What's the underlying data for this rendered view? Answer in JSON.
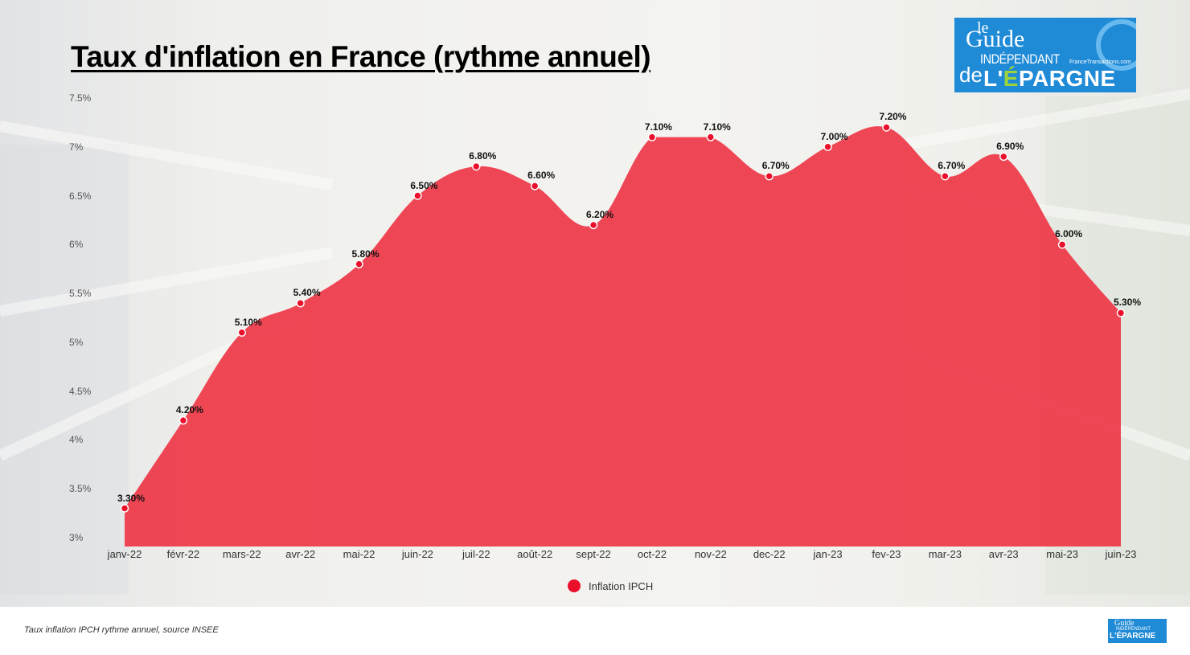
{
  "title": "Taux d'inflation en France (rythme annuel)",
  "logo": {
    "le": "le",
    "guide": "Guide",
    "independant": "INDÉPENDANT",
    "site": "FranceTransactions.com",
    "de": "de",
    "lep": "L'",
    "e_accent": "É",
    "pargne": "PARGNE"
  },
  "colors": {
    "area_fill": "#ee3344",
    "marker": "#ea0f2a",
    "marker_stroke": "#ffffff"
  },
  "chart_data": {
    "type": "area",
    "title": "Taux d'inflation en France (rythme annuel)",
    "xlabel": "",
    "ylabel": "",
    "categories": [
      "janv-22",
      "févr-22",
      "mars-22",
      "avr-22",
      "mai-22",
      "juin-22",
      "juil-22",
      "août-22",
      "sept-22",
      "oct-22",
      "nov-22",
      "dec-22",
      "jan-23",
      "fev-23",
      "mar-23",
      "avr-23",
      "mai-23",
      "juin-23"
    ],
    "series": [
      {
        "name": "Inflation IPCH",
        "values": [
          3.3,
          4.2,
          5.1,
          5.4,
          5.8,
          6.5,
          6.8,
          6.6,
          6.2,
          7.1,
          7.1,
          6.7,
          7.0,
          7.2,
          6.7,
          6.9,
          6.0,
          5.3
        ],
        "labels": [
          "3.30%",
          "4.20%",
          "5.10%",
          "5.40%",
          "5.80%",
          "6.50%",
          "6.80%",
          "6.60%",
          "6.20%",
          "7.10%",
          "7.10%",
          "6.70%",
          "7.00%",
          "7.20%",
          "6.70%",
          "6.90%",
          "6.00%",
          "5.30%"
        ]
      }
    ],
    "yticks": [
      "3%",
      "3.5%",
      "4%",
      "4.5%",
      "5%",
      "5.5%",
      "6%",
      "6.5%",
      "7%",
      "7.5%"
    ],
    "ylim": [
      3,
      7.5
    ],
    "grid": false,
    "legend_position": "bottom",
    "smooth": true
  },
  "legend": {
    "label": "Inflation IPCH"
  },
  "footer": "Taux inflation IPCH rythme annuel, source INSEE"
}
